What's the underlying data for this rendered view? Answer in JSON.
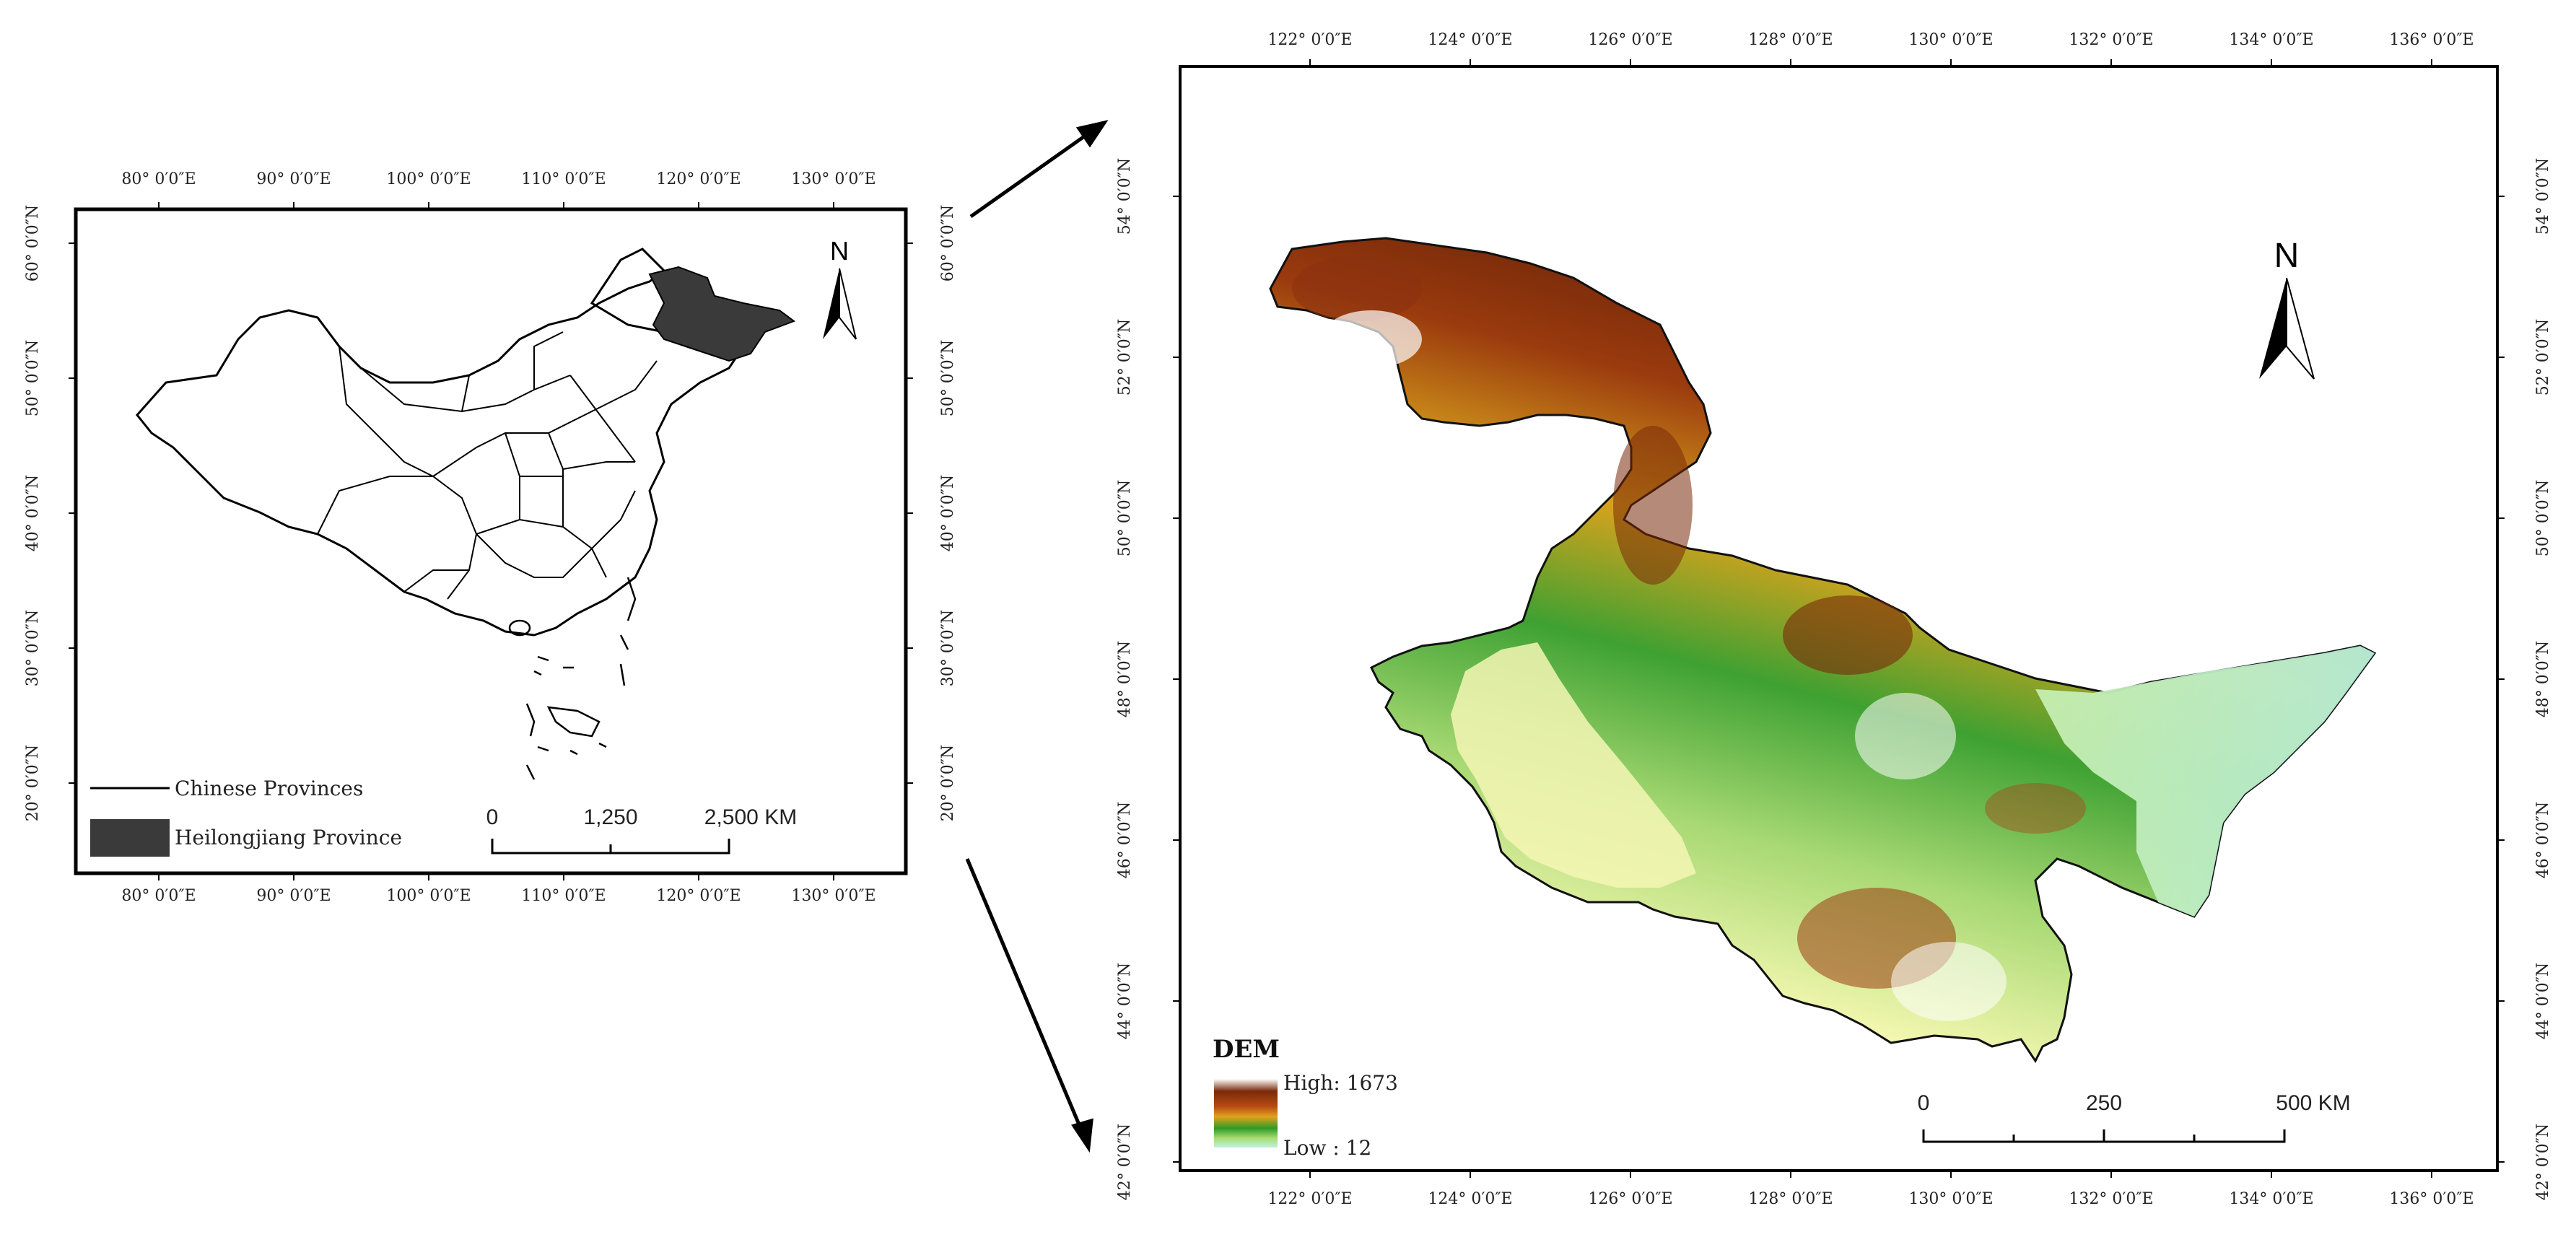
{
  "overview_map": {
    "lon_labels": [
      "80° 0′0″E",
      "90° 0′0″E",
      "100° 0′0″E",
      "110° 0′0″E",
      "120° 0′0″E",
      "130° 0′0″E"
    ],
    "lat_labels": [
      "20° 0′0″N",
      "30° 0′0″N",
      "40° 0′0″N",
      "50° 0′0″N",
      "60° 0′0″N"
    ],
    "north_label": "N",
    "legend": [
      {
        "symbol": "line",
        "label": "Chinese Provinces"
      },
      {
        "symbol": "fill",
        "label": "Heilongjiang Province",
        "color": "#3a3a3a"
      }
    ],
    "scale_bar": {
      "labels": [
        "0",
        "1,250",
        "2,500 KM"
      ]
    }
  },
  "detail_map": {
    "lon_labels": [
      "122° 0′0″E",
      "124° 0′0″E",
      "126° 0′0″E",
      "128° 0′0″E",
      "130° 0′0″E",
      "132° 0′0″E",
      "134° 0′0″E",
      "136° 0′0″E"
    ],
    "lat_labels": [
      "42° 0′0″N",
      "44° 0′0″N",
      "46° 0′0″N",
      "48° 0′0″N",
      "50° 0′0″N",
      "52° 0′0″N",
      "54° 0′0″N"
    ],
    "north_label": "N",
    "dem_legend": {
      "title": "DEM",
      "high_label": "High: 1673",
      "low_label": "Low : 12",
      "ramp_colors": [
        "#ffffff",
        "#7a2a0a",
        "#a83c10",
        "#d98a1a",
        "#3aa02a",
        "#9ed86a",
        "#b8f0d8"
      ]
    },
    "scale_bar": {
      "labels": [
        "0",
        "250",
        "500 KM"
      ]
    }
  }
}
